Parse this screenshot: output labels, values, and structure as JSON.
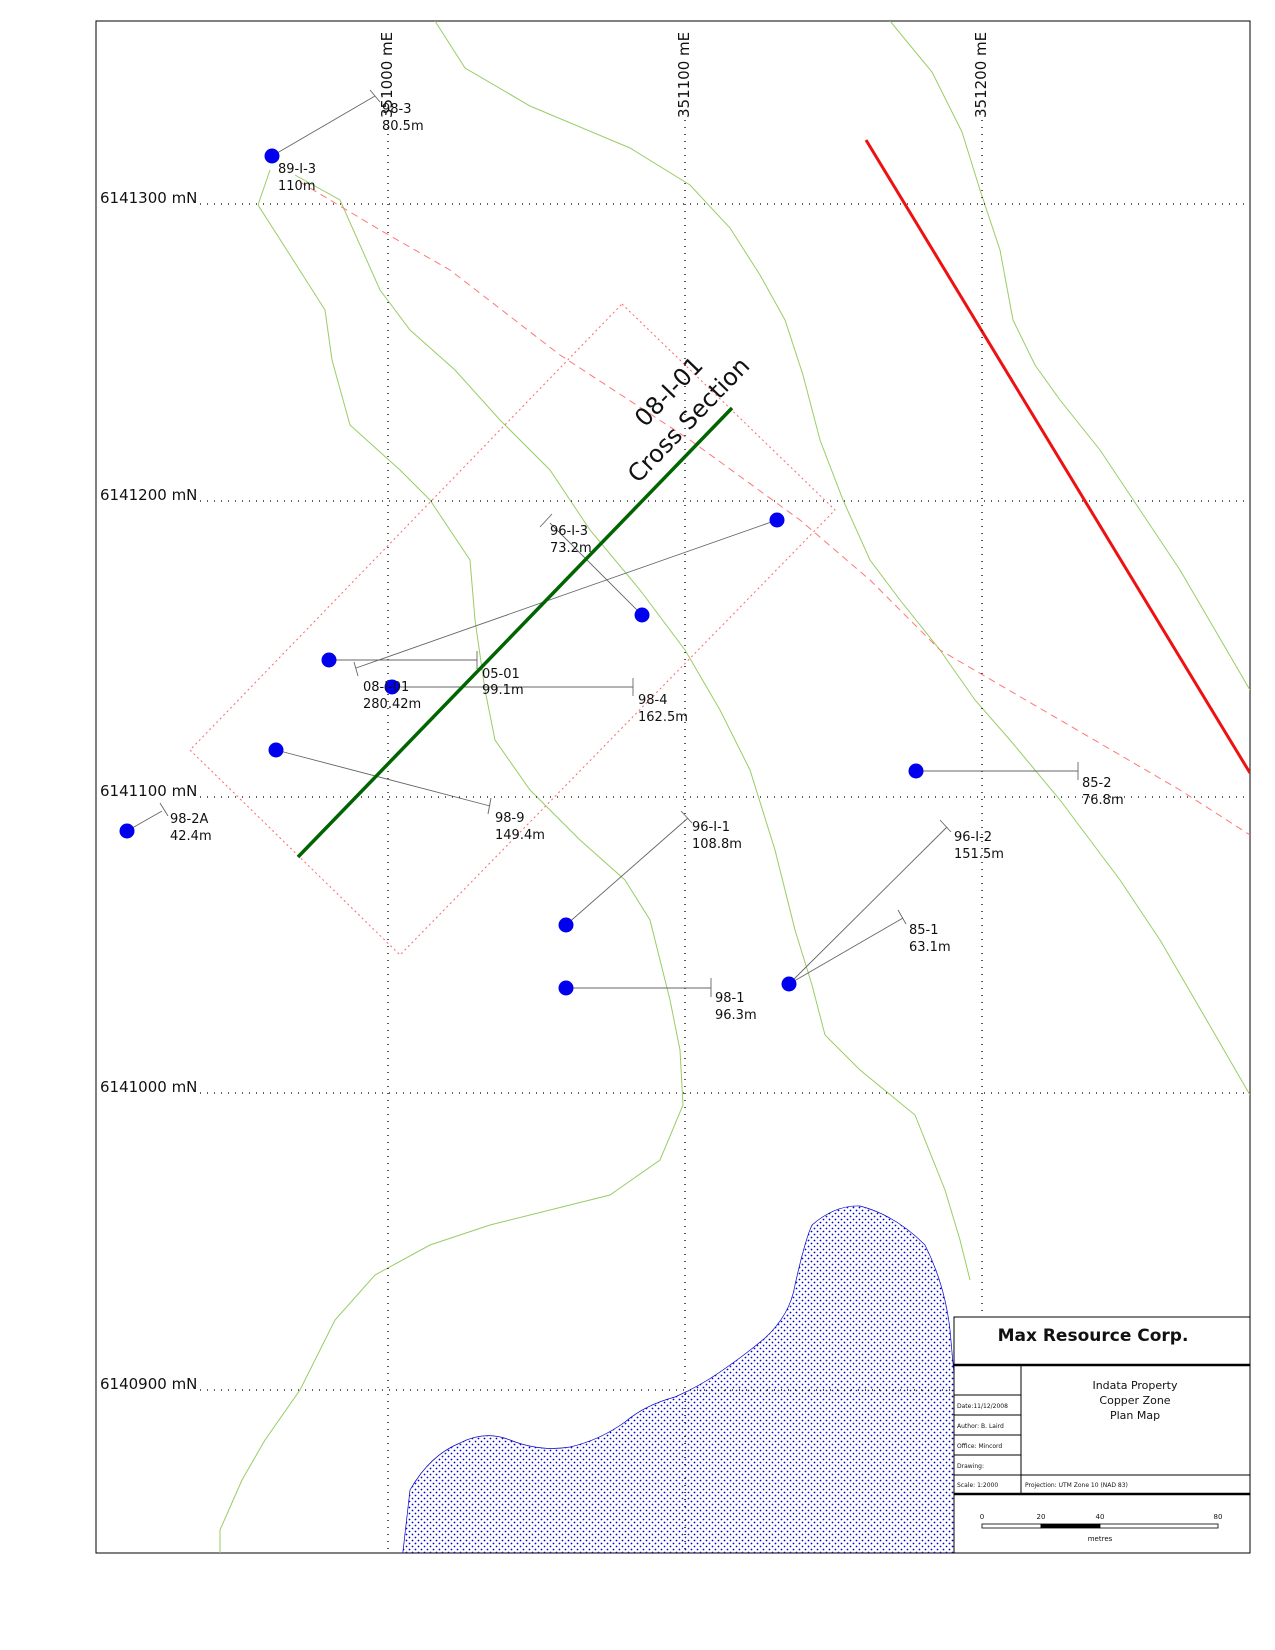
{
  "northing_labels": [
    "6141300 mN",
    "6141200 mN",
    "6141100 mN",
    "6141000 mN",
    "6140900 mN"
  ],
  "easting_labels": [
    "351000 mE",
    "351100 mE",
    "351200 mE"
  ],
  "cross_section": {
    "label_line1": "08-I-01",
    "label_line2": "Cross Section",
    "color": "#006400"
  },
  "fault_color": "#ee1111",
  "contour_color": "#99cc66",
  "collar_color": "#0000ee",
  "lake_color": "#0000cc",
  "drillholes": [
    {
      "id": "98-3",
      "length": "80.5m"
    },
    {
      "id": "89-I-3",
      "length": "110m"
    },
    {
      "id": "96-I-3",
      "length": "73.2m"
    },
    {
      "id": "05-01",
      "length": "99.1m"
    },
    {
      "id": "08-I-01",
      "length": "280.42m"
    },
    {
      "id": "98-4",
      "length": "162.5m"
    },
    {
      "id": "98-9",
      "length": "149.4m"
    },
    {
      "id": "98-2A",
      "length": "42.4m"
    },
    {
      "id": "96-I-1",
      "length": "108.8m"
    },
    {
      "id": "85-2",
      "length": "76.8m"
    },
    {
      "id": "96-I-2",
      "length": "151.5m"
    },
    {
      "id": "85-1",
      "length": "63.1m"
    },
    {
      "id": "98-1",
      "length": "96.3m"
    }
  ],
  "title_block": {
    "company": "Max Resource Corp.",
    "title_lines": [
      "Indata Property",
      "Copper Zone",
      "Plan Map"
    ],
    "date": "Date:11/12/2008",
    "author": "Author: B. Laird",
    "office": "Office: Mincord",
    "drawing": "Drawing:",
    "scale": "Scale: 1:2000",
    "projection": "Projection: UTM Zone 10 (NAD 83)",
    "scale_ticks": [
      "0",
      "20",
      "40",
      "80"
    ],
    "scale_unit": "metres"
  }
}
